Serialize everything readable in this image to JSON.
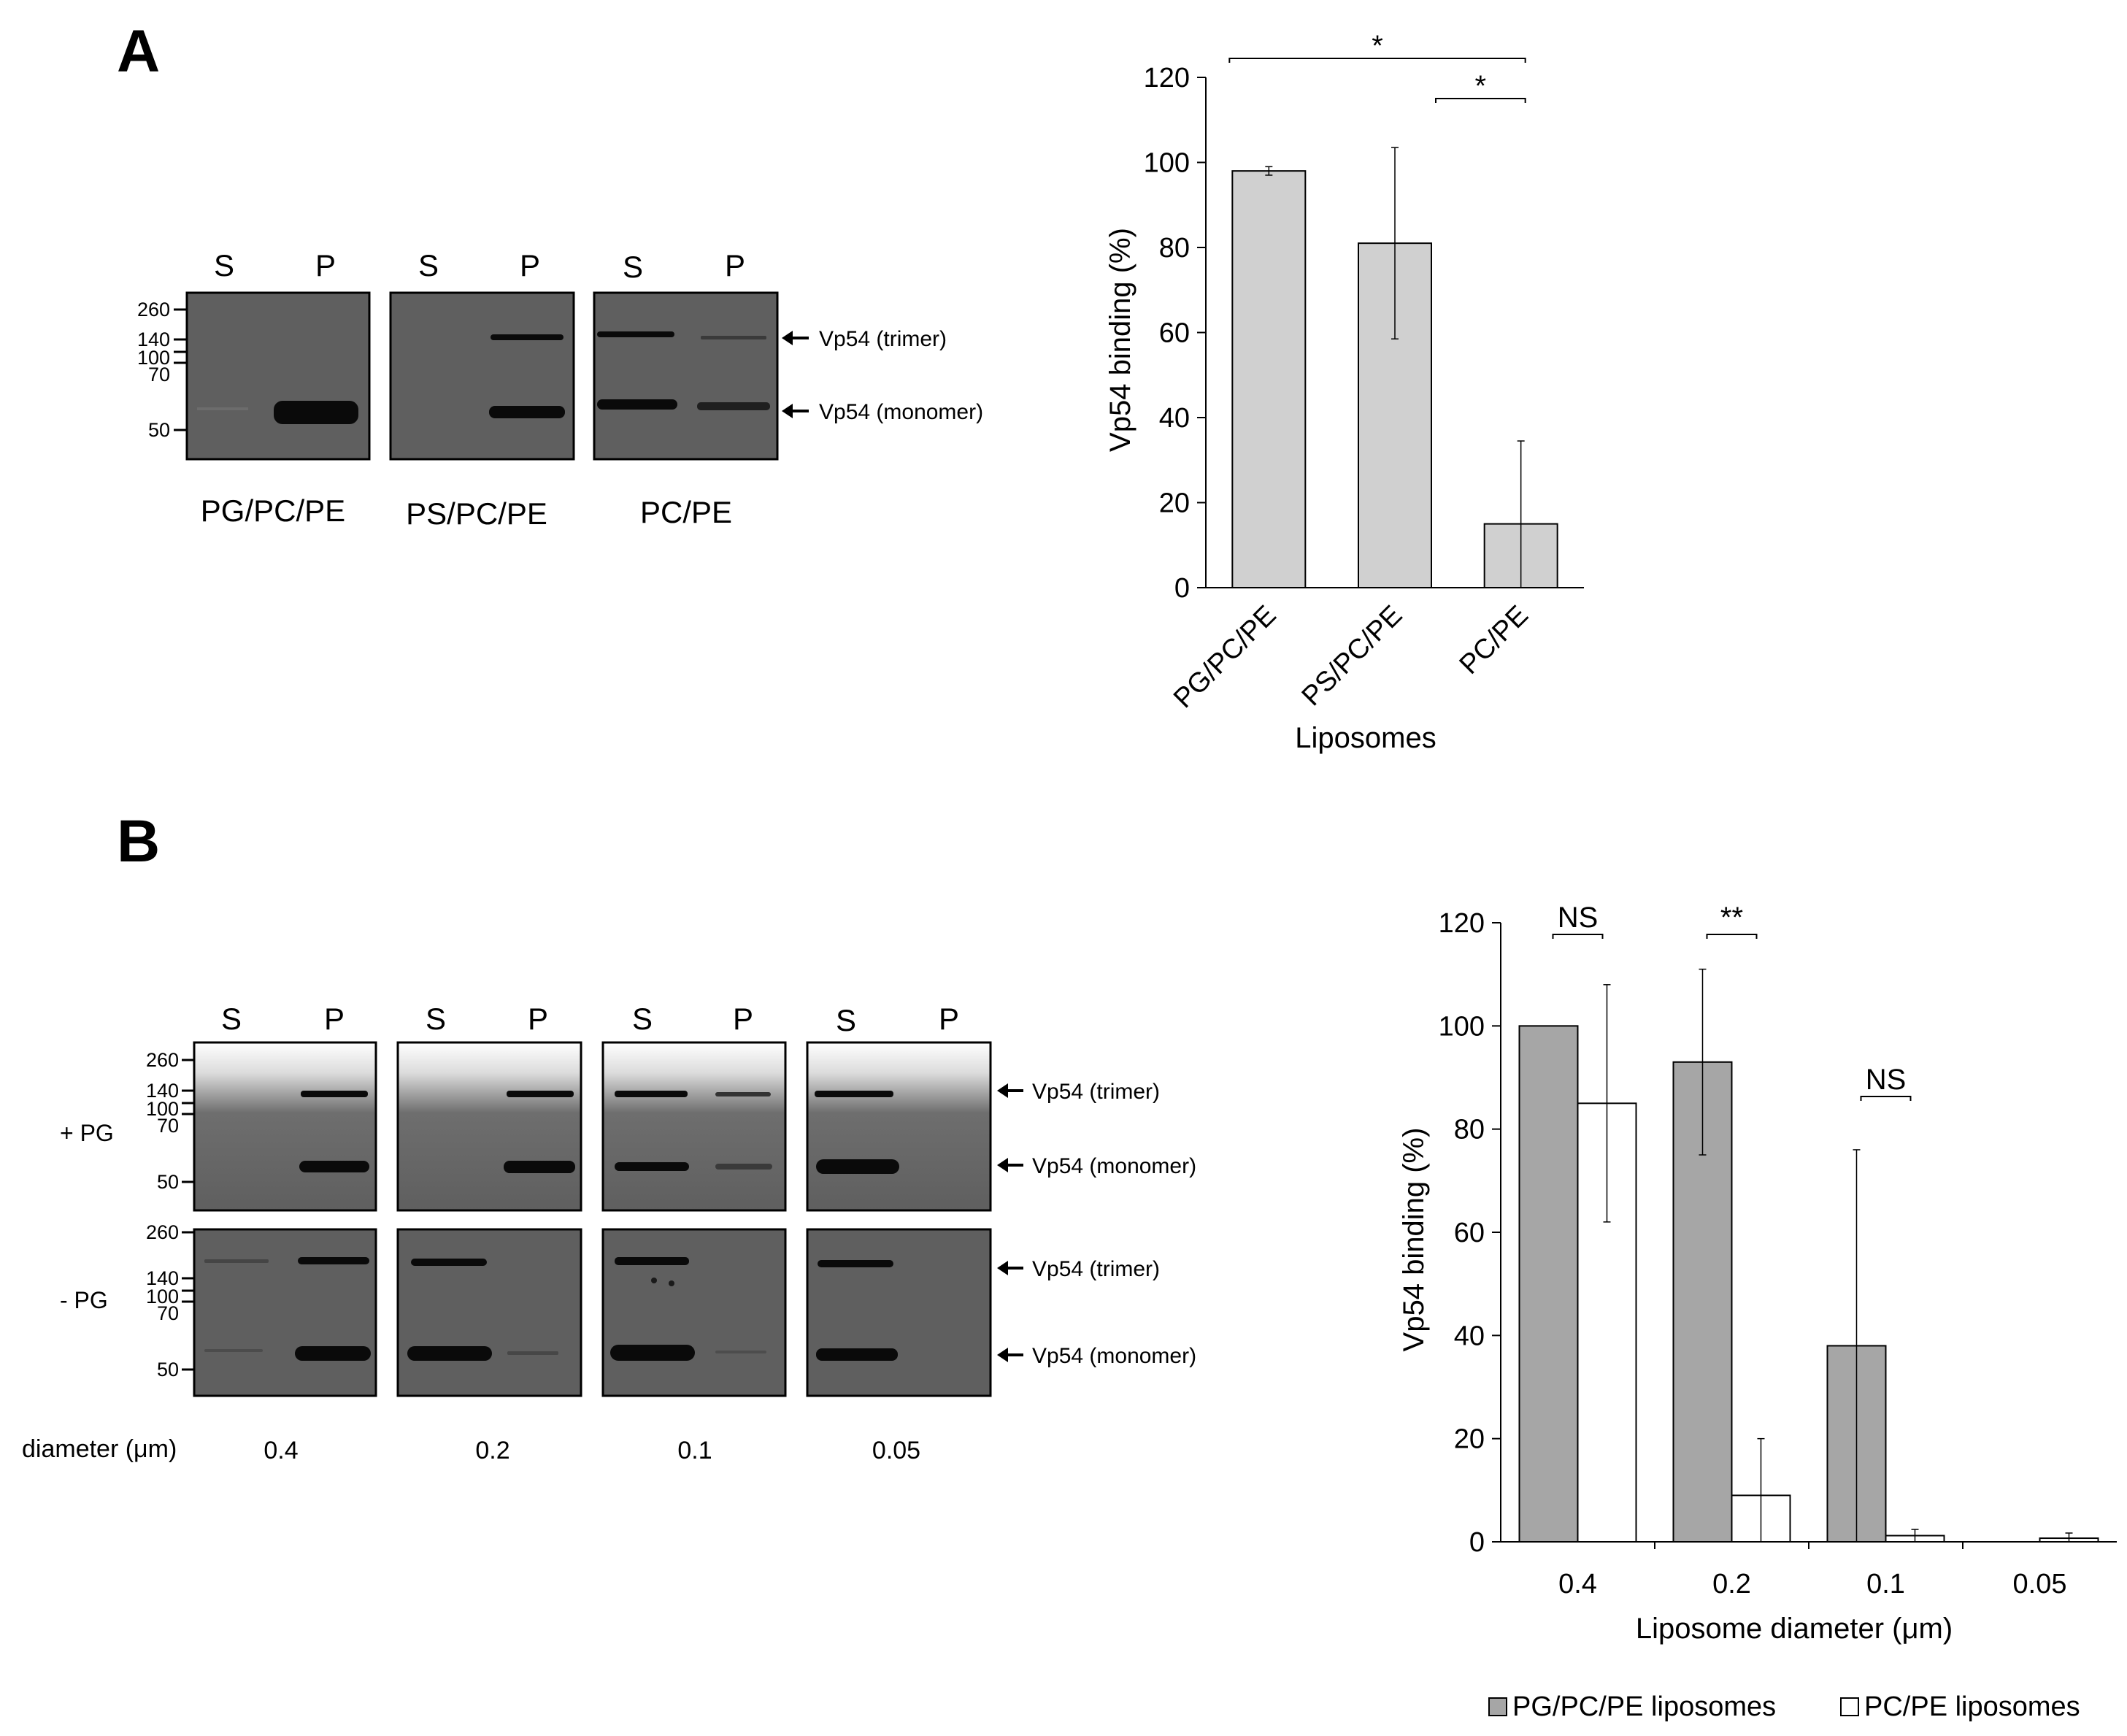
{
  "panel_labels": {
    "a": "A",
    "b": "B"
  },
  "colors": {
    "gel": "#5f5f5f",
    "band": "#0a0a0a",
    "bar_gray_a": "#d0d0d0",
    "bar_gray_b": "#a6a6a6",
    "bar_white": "#ffffff"
  },
  "blot_a": {
    "lane_labels": [
      "S",
      "P",
      "S",
      "P",
      "S",
      "P"
    ],
    "mw_markers": [
      "260",
      "140",
      "100",
      "70",
      "50"
    ],
    "arrow_trimer": "Vp54 (trimer)",
    "arrow_monomer": "Vp54 (monomer)",
    "panel_names": [
      "PG/PC/PE",
      "PS/PC/PE",
      "PC/PE"
    ]
  },
  "blot_b": {
    "lane_labels": [
      "S",
      "P",
      "S",
      "P",
      "S",
      "P",
      "S",
      "P"
    ],
    "mw_markers": [
      "260",
      "140",
      "100",
      "70",
      "50"
    ],
    "row_labels": [
      "+ PG",
      "- PG"
    ],
    "arrow_trimer": "Vp54 (trimer)",
    "arrow_monomer": "Vp54 (monomer)",
    "diameter_label": "diameter (μm)",
    "diameters": [
      "0.4",
      "0.2",
      "0.1",
      "0.05"
    ]
  },
  "chart_data": [
    {
      "type": "bar",
      "categories": [
        "PG/PC/PE",
        "PS/PC/PE",
        "PC/PE"
      ],
      "series": [
        {
          "values": [
            98,
            81,
            15
          ],
          "errors": [
            1,
            22.5,
            19.5
          ],
          "color": "#d0d0d0"
        }
      ],
      "ylabel": "Vp54 binding (%)",
      "xlabel": "Liposomes",
      "ylim": [
        0,
        120
      ],
      "yticks": [
        "0",
        "20",
        "40",
        "60",
        "80",
        "100",
        "120"
      ],
      "significance": [
        {
          "label": "*",
          "between": [
            "PG/PC/PE",
            "PC/PE"
          ]
        },
        {
          "label": "*",
          "between": [
            "PS/PC/PE",
            "PC/PE"
          ]
        }
      ],
      "grid": false
    },
    {
      "type": "bar",
      "categories": [
        "0.4",
        "0.2",
        "0.1",
        "0.05"
      ],
      "series": [
        {
          "name": "PG/PC/PE liposomes",
          "values": [
            100,
            93,
            38,
            0
          ],
          "errors": [
            0,
            18,
            38,
            0
          ],
          "color": "#a6a6a6"
        },
        {
          "name": "PC/PE liposomes",
          "values": [
            85,
            9,
            1.2,
            0.7
          ],
          "errors": [
            23,
            11,
            1.2,
            1
          ],
          "color": "#ffffff"
        }
      ],
      "ylabel": "Vp54 binding (%)",
      "xlabel": "Liposome diameter (μm)",
      "ylim": [
        0,
        120
      ],
      "yticks": [
        "0",
        "20",
        "40",
        "60",
        "80",
        "100",
        "120"
      ],
      "significance": [
        {
          "label": "NS",
          "category": "0.4"
        },
        {
          "label": "**",
          "category": "0.2"
        },
        {
          "label": "NS",
          "category": "0.1"
        }
      ],
      "legend": "bottom",
      "grid": false
    }
  ]
}
